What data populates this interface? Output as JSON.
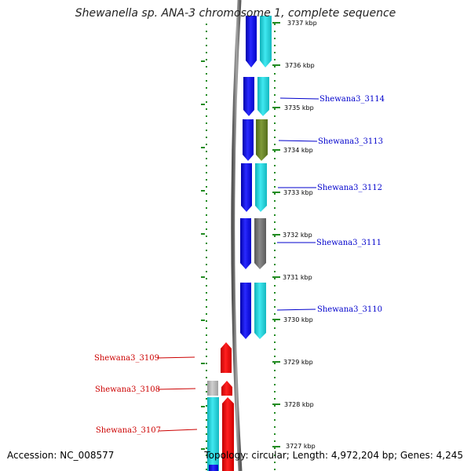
{
  "header": {
    "title": "Shewanella sp. ANA-3 chromosome 1, complete sequence"
  },
  "footer": {
    "accession": "Accession: NC_008577",
    "summary": "Topology: circular; Length: 4,972,204 bp; Genes: 4,245"
  },
  "scale": {
    "ticks": [
      "3737 kbp",
      "3736 kbp",
      "3735 kbp",
      "3734 kbp",
      "3733 kbp",
      "3732 kbp",
      "3731 kbp",
      "3730 kbp",
      "3729 kbp",
      "3728 kbp",
      "3727 kbp"
    ]
  },
  "genes": {
    "plus_strand": [
      "Shewana3_3114",
      "Shewana3_3113",
      "Shewana3_3112",
      "Shewana3_3111",
      "Shewana3_3110"
    ],
    "minus_strand": [
      "Shewana3_3109",
      "Shewana3_3108",
      "Shewana3_3107"
    ]
  },
  "colors": {
    "plus_label": "#0000cc",
    "minus_label": "#cc0000",
    "ruler_dots": "#228B22",
    "backbone": "#777777"
  }
}
